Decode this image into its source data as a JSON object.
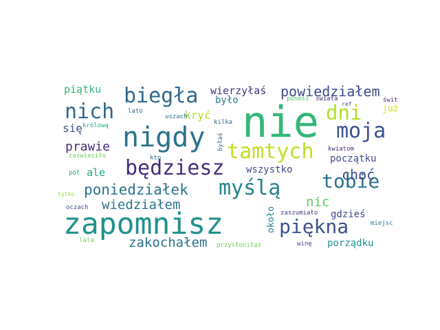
{
  "words": [
    {
      "text": "nie",
      "color": "#35b779"
    },
    {
      "text": "zapomnisz",
      "color": "#21918c"
    },
    {
      "text": "nigdy",
      "color": "#2c728e"
    },
    {
      "text": "tamtych",
      "color": "#bddf26"
    },
    {
      "text": "będziesz",
      "color": "#472d7b"
    },
    {
      "text": "biegła",
      "color": "#31688e"
    },
    {
      "text": "nich",
      "color": "#31688e"
    },
    {
      "text": "moja",
      "color": "#3b528b"
    },
    {
      "text": "myślą",
      "color": "#26828e"
    },
    {
      "text": "tobie",
      "color": "#2c728e"
    },
    {
      "text": "piękna",
      "color": "#3b528b"
    },
    {
      "text": "dni",
      "color": "#b5de2b"
    },
    {
      "text": "poniedziałek",
      "color": "#2c728e"
    },
    {
      "text": "powiedziałem",
      "color": "#3e4a89"
    },
    {
      "text": "wiedziałem",
      "color": "#2c728e"
    },
    {
      "text": "zakochałem",
      "color": "#2c728e"
    },
    {
      "text": "prawie",
      "color": "#472d7b"
    },
    {
      "text": "choć",
      "color": "#3e4a89"
    },
    {
      "text": "nic",
      "color": "#5ec962"
    },
    {
      "text": "kryć",
      "color": "#addc30"
    },
    {
      "text": "wierzyłaś",
      "color": "#46327e"
    },
    {
      "text": "piątku",
      "color": "#35b779"
    },
    {
      "text": "się",
      "color": "#3b528b"
    },
    {
      "text": "ale",
      "color": "#20a486"
    },
    {
      "text": "wszystko",
      "color": "#3e4a89"
    },
    {
      "text": "początku",
      "color": "#3e4a89"
    },
    {
      "text": "gdzieś",
      "color": "#3e4a89"
    },
    {
      "text": "porządku",
      "color": "#21918c"
    },
    {
      "text": "było",
      "color": "#287c8e"
    },
    {
      "text": "już",
      "color": "#d2e21b"
    },
    {
      "text": "około",
      "color": "#26828e"
    },
    {
      "text": "kwiatom",
      "color": "#482878"
    },
    {
      "text": "królową",
      "color": "#22a884"
    },
    {
      "text": "zaświeciło",
      "color": "#6ece58"
    },
    {
      "text": "pół",
      "color": "#20a486"
    },
    {
      "text": "tylko",
      "color": "#90d743"
    },
    {
      "text": "lata",
      "color": "#75d054"
    },
    {
      "text": "oczach",
      "color": "#3b528b"
    },
    {
      "text": "kilka",
      "color": "#30698e"
    },
    {
      "text": "byłaś",
      "color": "#31688e"
    },
    {
      "text": "kto",
      "color": "#31688e"
    },
    {
      "text": "uszach",
      "color": "#2c728e"
    },
    {
      "text": "lato",
      "color": "#31688e"
    },
    {
      "text": "ponosi",
      "color": "#4ac16d"
    },
    {
      "text": "świata",
      "color": "#472d7b"
    },
    {
      "text": "świt",
      "color": "#482475"
    },
    {
      "text": "ref",
      "color": "#3b528b"
    },
    {
      "text": "zaszumiało",
      "color": "#46337f"
    },
    {
      "text": "przysłoniłaś",
      "color": "#6ece58"
    },
    {
      "text": "winę",
      "color": "#3e4a89"
    },
    {
      "text": "miejsc",
      "color": "#2c728e"
    }
  ]
}
